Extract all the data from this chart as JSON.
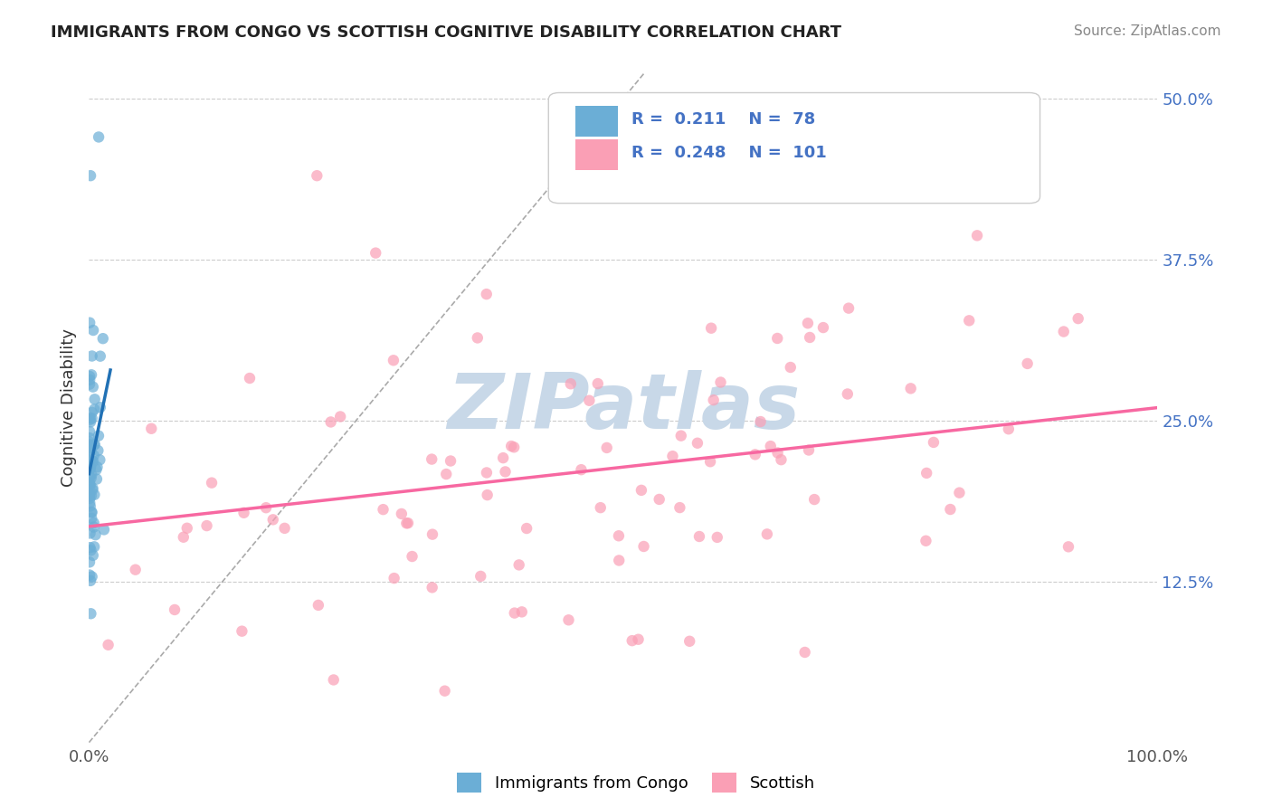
{
  "title": "IMMIGRANTS FROM CONGO VS SCOTTISH COGNITIVE DISABILITY CORRELATION CHART",
  "source": "Source: ZipAtlas.com",
  "ylabel": "Cognitive Disability",
  "xlim": [
    0,
    1.0
  ],
  "ylim": [
    0,
    0.52
  ],
  "x_tick_labels": [
    "0.0%",
    "100.0%"
  ],
  "y_ticks_right": [
    0.125,
    0.25,
    0.375,
    0.5
  ],
  "y_tick_labels_right": [
    "12.5%",
    "25.0%",
    "37.5%",
    "50.0%"
  ],
  "blue_R": 0.211,
  "blue_N": 78,
  "pink_R": 0.248,
  "pink_N": 101,
  "legend_label_blue": "Immigrants from Congo",
  "legend_label_pink": "Scottish",
  "blue_color": "#6baed6",
  "pink_color": "#fa9fb5",
  "blue_line_color": "#2171b5",
  "pink_line_color": "#f768a1",
  "grid_color": "#cccccc",
  "background_color": "#ffffff",
  "watermark": "ZIPatlas",
  "watermark_color": "#c8d8e8"
}
